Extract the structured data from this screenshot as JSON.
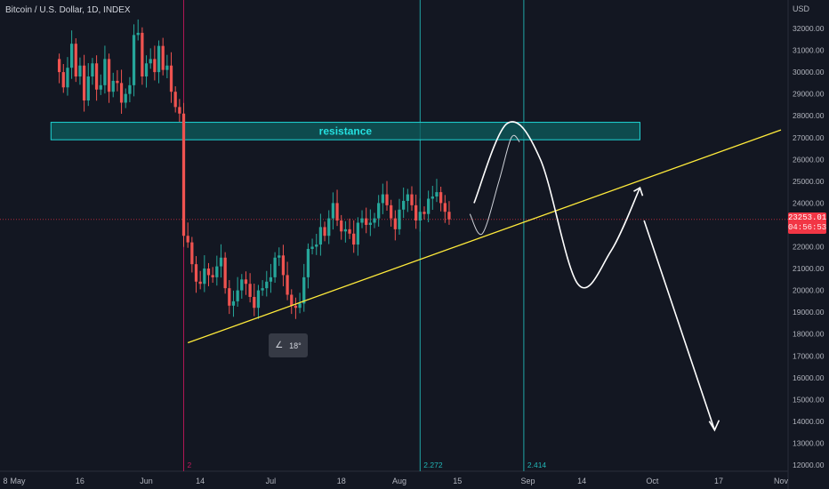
{
  "header": {
    "title": "Bitcoin / U.S. Dollar, 1D, INDEX"
  },
  "currency": "USD",
  "last_price": {
    "value": "23253.01",
    "countdown": "04:56:53",
    "color": "#f23645"
  },
  "angle_tool": {
    "icon": "angle-icon",
    "value": "18°"
  },
  "colors": {
    "up": "#26a69a",
    "down": "#ef5350",
    "trendline": "#ffeb3b",
    "zone_fill": "#0e5d5e",
    "zone_border": "#1fd6d6",
    "vline": "#22b5b5",
    "vline_red": "#c2185b",
    "projection": "#ffffff"
  },
  "chart_data": {
    "type": "candlestick",
    "title": "Bitcoin / U.S. Dollar, 1D, INDEX",
    "y_axis": {
      "unit": "USD",
      "range": [
        11900,
        33200
      ],
      "ticks": [
        12000,
        13000,
        14000,
        15000,
        16000,
        17000,
        18000,
        19000,
        20000,
        21000,
        22000,
        23000,
        24000,
        25000,
        26000,
        27000,
        28000,
        29000,
        30000,
        31000,
        32000
      ]
    },
    "x_axis": {
      "range": [
        "2022-04-28",
        "2022-11-01"
      ],
      "ticks": [
        {
          "date": "2022-04-28",
          "label": "8"
        },
        {
          "date": "2022-05-01",
          "label": "May"
        },
        {
          "date": "2022-05-16",
          "label": "16"
        },
        {
          "date": "2022-06-01",
          "label": "Jun"
        },
        {
          "date": "2022-06-14",
          "label": "14"
        },
        {
          "date": "2022-07-01",
          "label": "Jul"
        },
        {
          "date": "2022-07-18",
          "label": "18"
        },
        {
          "date": "2022-08-01",
          "label": "Aug"
        },
        {
          "date": "2022-08-15",
          "label": "15"
        },
        {
          "date": "2022-09-01",
          "label": "Sep"
        },
        {
          "date": "2022-09-14",
          "label": "14"
        },
        {
          "date": "2022-10-01",
          "label": "Oct"
        },
        {
          "date": "2022-10-17",
          "label": "17"
        },
        {
          "date": "2022-11-01",
          "label": "Nov"
        }
      ]
    },
    "candles_start": "2022-05-11",
    "candles_close": [
      30000,
      29300,
      30200,
      31300,
      29800,
      30300,
      28700,
      29800,
      30400,
      29200,
      29400,
      30600,
      29100,
      29600,
      29500,
      28600,
      29000,
      29400,
      31700,
      31800,
      29800,
      30400,
      30600,
      30000,
      31200,
      30100,
      30300,
      29100,
      28400,
      28100,
      22500,
      22200,
      21200,
      20400,
      20300,
      21000,
      20700,
      20600,
      21100,
      21500,
      20100,
      19300,
      19500,
      20000,
      20500,
      20300,
      19700,
      19200,
      20000,
      20100,
      20400,
      20600,
      21500,
      21600,
      20700,
      19800,
      19300,
      19200,
      19400,
      20600,
      21900,
      22000,
      22100,
      22900,
      22500,
      23300,
      24000,
      23200,
      22700,
      22800,
      22600,
      22100,
      23100,
      23300,
      23000,
      23100,
      23300,
      24000,
      24400,
      23900,
      23300,
      22800,
      23700,
      24100,
      24400,
      23900,
      23200,
      23600,
      23500,
      24200,
      24300,
      24500,
      24000,
      23600,
      23253
    ],
    "horizontal_line": 23253.01,
    "resistance_zone": {
      "label": "resistance",
      "from": 26900,
      "to": 27700,
      "start": "2022-05-09",
      "end": "2022-09-28"
    },
    "trendline": {
      "p1": {
        "date": "2022-06-11",
        "value": 17600
      },
      "p2": {
        "date": "2022-11-01",
        "value": 27350
      }
    },
    "vertical_lines": [
      {
        "date": "2022-06-10",
        "label": "2",
        "color": "vline_red"
      },
      {
        "date": "2022-08-06",
        "label": "2.272",
        "color": "vline"
      },
      {
        "date": "2022-08-31",
        "label": "2.414",
        "color": "vline"
      }
    ],
    "projection_path": [
      {
        "date": "2022-08-19",
        "value": 24000
      },
      {
        "date": "2022-08-27",
        "value": 27650
      },
      {
        "date": "2022-09-04",
        "value": 26000
      },
      {
        "date": "2022-09-13",
        "value": 20300
      },
      {
        "date": "2022-09-21",
        "value": 21800
      },
      {
        "date": "2022-09-28",
        "value": 24700
      }
    ],
    "projection_alt": [
      {
        "date": "2022-08-18",
        "value": 23500
      },
      {
        "date": "2022-08-21",
        "value": 22600
      },
      {
        "date": "2022-08-25",
        "value": 25000
      },
      {
        "date": "2022-08-28",
        "value": 27000
      },
      {
        "date": "2022-08-30",
        "value": 26800
      }
    ],
    "projection_down": [
      {
        "date": "2022-09-29",
        "value": 23200
      },
      {
        "date": "2022-10-16",
        "value": 13600
      }
    ]
  }
}
